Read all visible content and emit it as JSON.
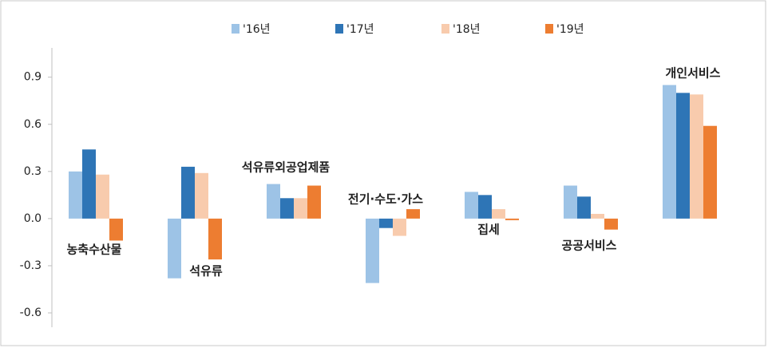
{
  "chart_data": {
    "type": "bar",
    "categories": [
      "농축수산물",
      "석유류",
      "석유류외공업제품",
      "전기·수도·가스",
      "집세",
      "공공서비스",
      "개인서비스"
    ],
    "series": [
      {
        "name": "'16년",
        "color": "#9dc3e6",
        "values": [
          0.3,
          -0.38,
          0.22,
          -0.41,
          0.17,
          0.21,
          0.85
        ]
      },
      {
        "name": "'17년",
        "color": "#2e75b6",
        "values": [
          0.44,
          0.33,
          0.13,
          -0.06,
          0.15,
          0.14,
          0.8
        ]
      },
      {
        "name": "'18년",
        "color": "#f8cbad",
        "values": [
          0.28,
          0.29,
          0.13,
          -0.11,
          0.06,
          0.03,
          0.79
        ]
      },
      {
        "name": "'19년",
        "color": "#ed7d31",
        "values": [
          -0.14,
          -0.26,
          0.21,
          0.06,
          -0.01,
          -0.07,
          0.59
        ]
      }
    ],
    "ylim": [
      -0.6,
      1.0
    ],
    "yticks": [
      -0.6,
      -0.3,
      {
        "value": 0,
        "label": "0.0"
      },
      0.3,
      0.6,
      0.9
    ],
    "legend": "top"
  }
}
